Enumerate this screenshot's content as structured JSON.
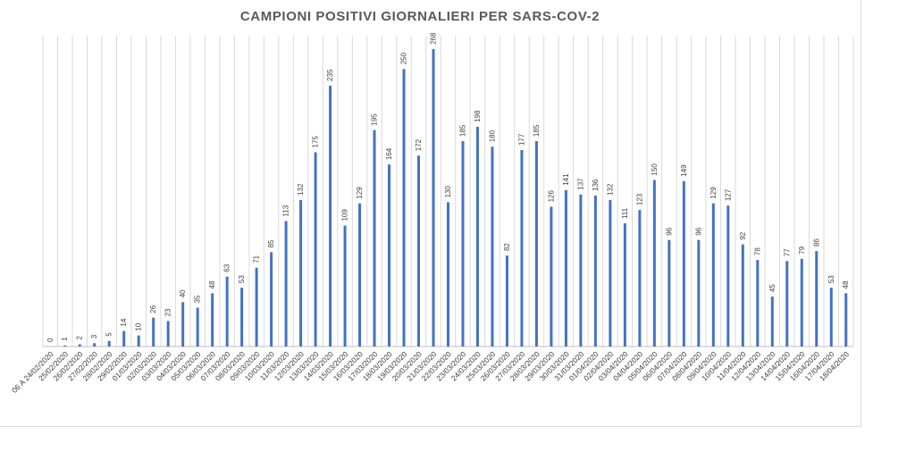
{
  "chart_data": {
    "type": "bar",
    "title": "CAMPIONI POSITIVI GIORNALIERI PER SARS-COV-2",
    "xlabel": "",
    "ylabel": "",
    "ylim": [
      0,
      280
    ],
    "grid": "vertical",
    "legend": "none",
    "colors": {
      "bar": "#4472c4",
      "grid": "#d9d9d9",
      "title": "#595959"
    },
    "categories": [
      "06 A 24/02/2020",
      "25/02/2020",
      "26/02/2020",
      "27/02/2020",
      "28/02/2020",
      "29/02/2020",
      "01/03/2020",
      "02/03/2020",
      "03/03/2020",
      "04/03/2020",
      "05/03/2020",
      "06/03/2020",
      "07/03/2020",
      "08/03/2020",
      "09/03/2020",
      "10/03/2020",
      "11/03/2020",
      "12/03/2020",
      "13/03/2020",
      "14/03/2020",
      "15/03/2020",
      "16/03/2020",
      "17/03/2020",
      "18/03/2020",
      "19/03/2020",
      "20/03/2020",
      "21/03/2020",
      "22/03/2020",
      "23/03/2020",
      "24/03/2020",
      "25/03/2020",
      "26/03/2020",
      "27/03/2020",
      "28/03/2020",
      "29/03/2020",
      "30/03/2020",
      "31/03/2020",
      "01/04/2020",
      "02/04/2020",
      "03/04/2020",
      "04/04/2020",
      "05/04/2020",
      "06/04/2020",
      "07/04/2020",
      "08/04/2020",
      "09/04/2020",
      "10/04/2020",
      "11/04/2020",
      "12/04/2020",
      "13/04/2020",
      "14/04/2020",
      "15/04/2020",
      "16/04/2020",
      "17/04/2020",
      "18/04/2020"
    ],
    "values": [
      0,
      1,
      2,
      3,
      5,
      14,
      10,
      26,
      23,
      40,
      35,
      48,
      63,
      53,
      71,
      85,
      113,
      132,
      175,
      235,
      109,
      129,
      195,
      164,
      250,
      172,
      268,
      130,
      185,
      198,
      180,
      82,
      177,
      185,
      126,
      141,
      137,
      136,
      132,
      111,
      123,
      150,
      96,
      149,
      96,
      129,
      127,
      92,
      78,
      45,
      77,
      79,
      86,
      53,
      48
    ]
  }
}
